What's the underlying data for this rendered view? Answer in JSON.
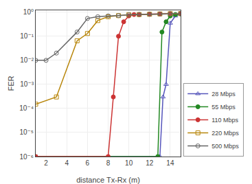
{
  "chart_data": {
    "type": "line",
    "xlabel": "distance Tx-Rx (m)",
    "ylabel": "FER",
    "log": "y",
    "grid": true,
    "legend": "lower right",
    "xlim": [
      1,
      15
    ],
    "xticks": [
      2,
      4,
      6,
      8,
      10,
      12,
      14
    ],
    "ylim": [
      1e-06,
      1.2
    ],
    "yticks": [
      {
        "value": 1e-06,
        "label": "10⁻⁶"
      },
      {
        "value": 1e-05,
        "label": "10⁻⁵"
      },
      {
        "value": 0.0001,
        "label": "10⁻⁴"
      },
      {
        "value": 0.001,
        "label": "10⁻³"
      },
      {
        "value": 0.01,
        "label": "10⁻²"
      },
      {
        "value": 0.1,
        "label": "10⁻¹"
      },
      {
        "value": 1,
        "label": "10⁰"
      }
    ],
    "series": [
      {
        "name": "28 Mbps",
        "color": "#5555bb",
        "marker": "triangle-up-open",
        "line_style": "solid",
        "x": [
          1,
          13.0,
          13.3,
          13.6,
          14.0,
          14.5,
          15.0
        ],
        "values": [
          1e-06,
          1e-06,
          0.0003,
          0.001,
          0.35,
          0.7,
          0.85
        ]
      },
      {
        "name": "55 Mbps",
        "color": "#228822",
        "marker": "circle",
        "line_style": "solid",
        "x": [
          1,
          12.8,
          13.2,
          13.6,
          14.0,
          14.5,
          15.0
        ],
        "values": [
          1e-06,
          1e-06,
          0.15,
          0.4,
          0.7,
          0.8,
          0.85
        ]
      },
      {
        "name": "110 Mbps",
        "color": "#cc3333",
        "marker": "circle",
        "line_style": "solid",
        "x": [
          1,
          8.0,
          8.5,
          9.0,
          9.5,
          10.0,
          10.5,
          11.0,
          12.0,
          13.0,
          14.0,
          15.0
        ],
        "values": [
          1e-06,
          1e-06,
          0.0003,
          0.1,
          0.4,
          0.7,
          0.8,
          0.8,
          0.83,
          0.85,
          0.87,
          0.88
        ]
      },
      {
        "name": "220 Mbps",
        "color": "#b8860b",
        "marker": "square-open",
        "line_style": "solid",
        "x": [
          1,
          3,
          5,
          6,
          7,
          8,
          9,
          10,
          11,
          12,
          13,
          14,
          15
        ],
        "values": [
          0.00015,
          0.0003,
          0.065,
          0.13,
          0.45,
          0.65,
          0.72,
          0.78,
          0.8,
          0.82,
          0.85,
          0.87,
          0.88
        ]
      },
      {
        "name": "500 Mbps",
        "color": "#666666",
        "marker": "circle-open",
        "line_style": "solid",
        "x": [
          1,
          2,
          3,
          5,
          6,
          7,
          8,
          9,
          10,
          11,
          12,
          13,
          14,
          15
        ],
        "values": [
          0.01,
          0.01,
          0.02,
          0.15,
          0.55,
          0.65,
          0.7,
          0.72,
          0.78,
          0.8,
          0.82,
          0.84,
          0.86,
          0.88
        ]
      }
    ]
  }
}
